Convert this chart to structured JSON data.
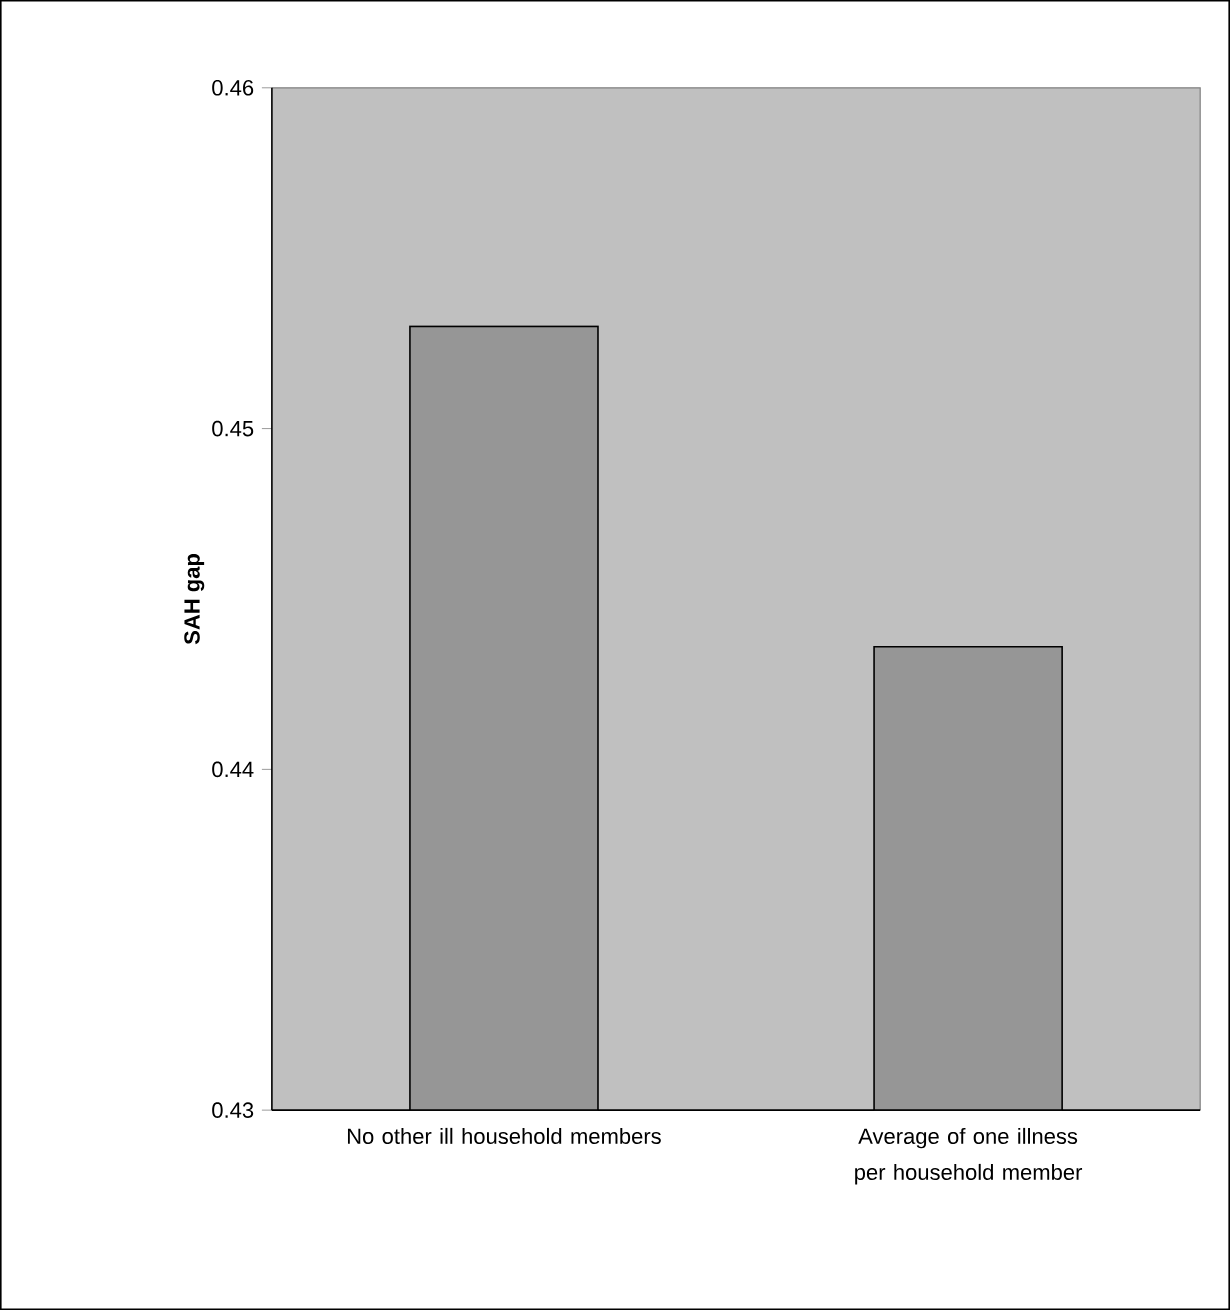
{
  "chart_data": {
    "type": "bar",
    "ylabel": "SAH gap",
    "categories": [
      "No other ill household members",
      "Average of one illness per household member"
    ],
    "values": [
      0.453,
      0.4436
    ],
    "color": "#969696",
    "ylim": [
      0.43,
      0.46
    ],
    "yticks": [
      0.43,
      0.44,
      0.45,
      0.46
    ]
  }
}
